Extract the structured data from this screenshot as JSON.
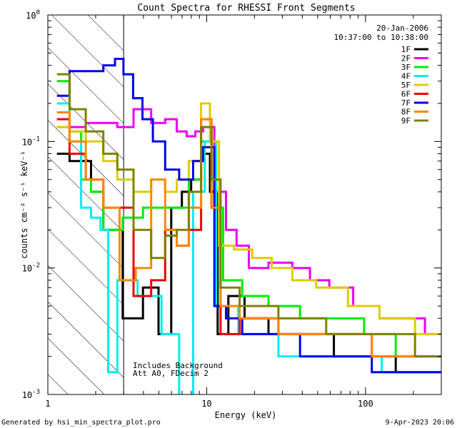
{
  "chart_data": {
    "type": "line",
    "title": "Count Spectra for RHESSI Front Segments",
    "xlabel": "Energy (keV)",
    "ylabel": "counts cm⁻² s⁻¹ keV⁻¹",
    "xscale": "log",
    "yscale": "log",
    "xlim": [
      1,
      300
    ],
    "ylim": [
      0.001,
      1
    ],
    "x_tick_labels": [
      {
        "value": 1,
        "label": "1"
      },
      {
        "value": 10,
        "label": "10"
      },
      {
        "value": 100,
        "label": "100"
      }
    ],
    "y_tick_labels": [
      {
        "value": 1,
        "base": "10",
        "exp": "0"
      },
      {
        "value": 0.1,
        "base": "10",
        "exp": "-1"
      },
      {
        "value": 0.01,
        "base": "10",
        "exp": "-2"
      },
      {
        "value": 0.001,
        "base": "10",
        "exp": "-3"
      }
    ],
    "date": "20-Jan-2006",
    "time_range": "10:37:00 to 10:38:00",
    "annotations": [
      "Includes Background",
      "Att A0, FDecim 2"
    ],
    "attenuator_shading_end_kev": 3,
    "footer_left": "Generated by hsi_min_spectra_plot.pro",
    "footer_right": "9-Apr-2023 20:06",
    "series": [
      {
        "name": "1F",
        "color": "#000000",
        "points": [
          [
            1.25,
            0.08
          ],
          [
            1.5,
            0.07
          ],
          [
            1.75,
            0.07
          ],
          [
            2.0,
            0.04
          ],
          [
            2.5,
            0.02
          ],
          [
            3.5,
            0.004
          ],
          [
            4.5,
            0.007
          ],
          [
            5.5,
            0.003
          ],
          [
            6.5,
            0.03
          ],
          [
            7.5,
            0.04
          ],
          [
            8.5,
            0.05
          ],
          [
            10.0,
            0.08
          ],
          [
            11.0,
            0.04
          ],
          [
            12.5,
            0.003
          ],
          [
            15,
            0.006
          ],
          [
            20,
            0.004
          ],
          [
            30,
            0.003
          ],
          [
            50,
            0.003
          ],
          [
            80,
            0.002
          ],
          [
            120,
            0.002
          ],
          [
            200,
            0.0015
          ],
          [
            280,
            0.0015
          ]
        ]
      },
      {
        "name": "2F",
        "color": "#ee00ee",
        "points": [
          [
            1.25,
            0.13
          ],
          [
            1.5,
            0.13
          ],
          [
            2.0,
            0.14
          ],
          [
            2.5,
            0.14
          ],
          [
            3.0,
            0.13
          ],
          [
            4.0,
            0.18
          ],
          [
            5.0,
            0.14
          ],
          [
            6.0,
            0.15
          ],
          [
            7.0,
            0.12
          ],
          [
            8.0,
            0.11
          ],
          [
            9.0,
            0.12
          ],
          [
            10.0,
            0.13
          ],
          [
            12.5,
            0.04
          ],
          [
            14,
            0.02
          ],
          [
            17,
            0.015
          ],
          [
            20,
            0.01
          ],
          [
            30,
            0.011
          ],
          [
            40,
            0.01
          ],
          [
            50,
            0.008
          ],
          [
            70,
            0.007
          ],
          [
            100,
            0.005
          ],
          [
            150,
            0.004
          ],
          [
            200,
            0.004
          ],
          [
            280,
            0.003
          ]
        ]
      },
      {
        "name": "3F",
        "color": "#00ee00",
        "points": [
          [
            1.25,
            0.3
          ],
          [
            1.5,
            0.12
          ],
          [
            1.75,
            0.05
          ],
          [
            2.0,
            0.04
          ],
          [
            2.5,
            0.02
          ],
          [
            3.5,
            0.025
          ],
          [
            4.5,
            0.03
          ],
          [
            5.5,
            0.03
          ],
          [
            7.0,
            0.03
          ],
          [
            8.5,
            0.05
          ],
          [
            10.0,
            0.1
          ],
          [
            11.5,
            0.03
          ],
          [
            14,
            0.008
          ],
          [
            20,
            0.006
          ],
          [
            30,
            0.005
          ],
          [
            50,
            0.004
          ],
          [
            80,
            0.004
          ],
          [
            120,
            0.003
          ],
          [
            200,
            0.002
          ],
          [
            280,
            0.002
          ]
        ]
      },
      {
        "name": "4F",
        "color": "#00eeee",
        "points": [
          [
            1.25,
            0.2
          ],
          [
            1.5,
            0.1
          ],
          [
            1.75,
            0.03
          ],
          [
            2.0,
            0.025
          ],
          [
            2.3,
            0.02
          ],
          [
            2.5,
            0.0015
          ],
          [
            3.0,
            0.008
          ],
          [
            4.5,
            0.006
          ],
          [
            6.0,
            0.003
          ],
          [
            7.5,
            0.0008
          ],
          [
            9.0,
            0.04
          ],
          [
            10.5,
            0.1
          ],
          [
            12.5,
            0.005
          ],
          [
            20,
            0.003
          ],
          [
            40,
            0.002
          ],
          [
            80,
            0.002
          ],
          [
            200,
            0.0015
          ]
        ]
      },
      {
        "name": "5F",
        "color": "#ddcc00",
        "points": [
          [
            1.25,
            0.13
          ],
          [
            1.5,
            0.12
          ],
          [
            2.0,
            0.1
          ],
          [
            2.5,
            0.07
          ],
          [
            3.0,
            0.05
          ],
          [
            4.0,
            0.04
          ],
          [
            5.0,
            0.05
          ],
          [
            6.0,
            0.04
          ],
          [
            7.0,
            0.05
          ],
          [
            8.5,
            0.07
          ],
          [
            10.0,
            0.2
          ],
          [
            11.0,
            0.1
          ],
          [
            13,
            0.015
          ],
          [
            17,
            0.014
          ],
          [
            22,
            0.012
          ],
          [
            30,
            0.01
          ],
          [
            40,
            0.008
          ],
          [
            60,
            0.007
          ],
          [
            100,
            0.005
          ],
          [
            150,
            0.004
          ],
          [
            280,
            0.003
          ]
        ]
      },
      {
        "name": "6F",
        "color": "#ee0000",
        "points": [
          [
            1.25,
            0.15
          ],
          [
            1.5,
            0.08
          ],
          [
            2.0,
            0.05
          ],
          [
            2.5,
            0.03
          ],
          [
            3.0,
            0.03
          ],
          [
            4.0,
            0.006
          ],
          [
            5.0,
            0.008
          ],
          [
            6.0,
            0.02
          ],
          [
            7.0,
            0.015
          ],
          [
            8.5,
            0.02
          ],
          [
            10.0,
            0.15
          ],
          [
            11.5,
            0.03
          ],
          [
            13,
            0.003
          ],
          [
            20,
            0.004
          ],
          [
            40,
            0.003
          ],
          [
            80,
            0.003
          ],
          [
            150,
            0.002
          ],
          [
            280,
            0.002
          ]
        ]
      },
      {
        "name": "7F",
        "color": "#0000ee",
        "points": [
          [
            1.25,
            0.23
          ],
          [
            1.5,
            0.36
          ],
          [
            2.0,
            0.36
          ],
          [
            2.5,
            0.4
          ],
          [
            2.8,
            0.45
          ],
          [
            3.2,
            0.34
          ],
          [
            3.7,
            0.22
          ],
          [
            4.2,
            0.15
          ],
          [
            5.0,
            0.1
          ],
          [
            6.0,
            0.06
          ],
          [
            7.5,
            0.05
          ],
          [
            9.0,
            0.07
          ],
          [
            10.0,
            0.09
          ],
          [
            12.5,
            0.005
          ],
          [
            14,
            0.004
          ],
          [
            20,
            0.003
          ],
          [
            30,
            0.003
          ],
          [
            50,
            0.002
          ],
          [
            80,
            0.002
          ],
          [
            150,
            0.0015
          ],
          [
            280,
            0.0015
          ]
        ]
      },
      {
        "name": "8F",
        "color": "#ff8800",
        "points": [
          [
            1.25,
            0.17
          ],
          [
            1.5,
            0.1
          ],
          [
            2.0,
            0.05
          ],
          [
            2.5,
            0.03
          ],
          [
            3.2,
            0.008
          ],
          [
            4.0,
            0.01
          ],
          [
            5.0,
            0.05
          ],
          [
            6.0,
            0.02
          ],
          [
            7.0,
            0.015
          ],
          [
            8.5,
            0.03
          ],
          [
            10.0,
            0.15
          ],
          [
            11.5,
            0.03
          ],
          [
            13,
            0.005
          ],
          [
            20,
            0.004
          ],
          [
            40,
            0.003
          ],
          [
            80,
            0.003
          ],
          [
            150,
            0.002
          ],
          [
            280,
            0.002
          ]
        ]
      },
      {
        "name": "9F",
        "color": "#808000",
        "points": [
          [
            1.25,
            0.34
          ],
          [
            1.5,
            0.18
          ],
          [
            2.0,
            0.12
          ],
          [
            2.5,
            0.08
          ],
          [
            3.0,
            0.06
          ],
          [
            4.0,
            0.02
          ],
          [
            5.0,
            0.012
          ],
          [
            6.0,
            0.018
          ],
          [
            7.0,
            0.02
          ],
          [
            8.5,
            0.04
          ],
          [
            10.0,
            0.13
          ],
          [
            11.5,
            0.05
          ],
          [
            13,
            0.007
          ],
          [
            20,
            0.005
          ],
          [
            40,
            0.004
          ],
          [
            80,
            0.003
          ],
          [
            150,
            0.003
          ],
          [
            280,
            0.002
          ]
        ]
      }
    ]
  }
}
